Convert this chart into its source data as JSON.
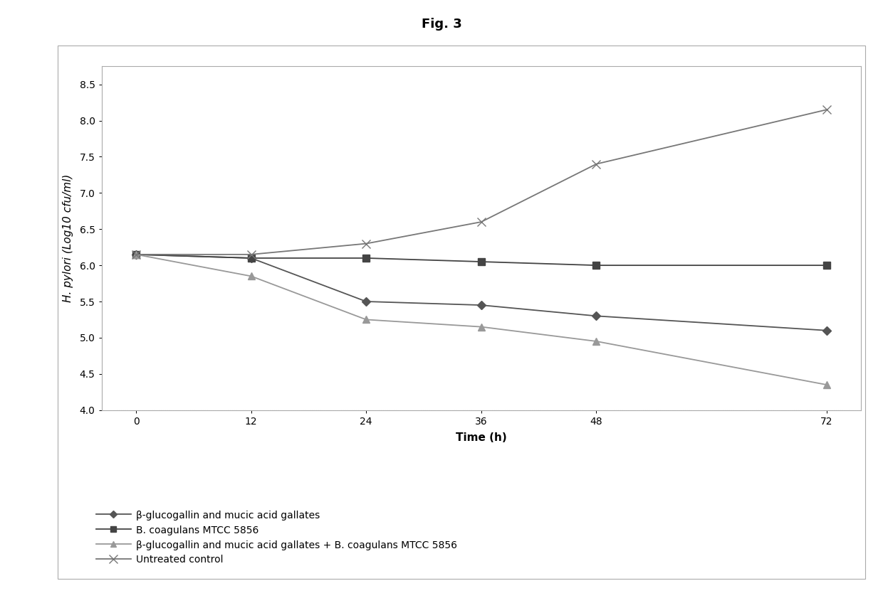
{
  "title": "Fig. 3",
  "xlabel": "Time (h)",
  "ylabel": "H. pylori (Log10 cfu/ml)",
  "x": [
    0,
    12,
    24,
    36,
    48,
    72
  ],
  "series": [
    {
      "label": "β-glucogallin and mucic acid gallates",
      "y": [
        6.15,
        6.1,
        5.5,
        5.45,
        5.3,
        5.1
      ],
      "color": "#555555",
      "marker": "D",
      "markersize": 6,
      "linewidth": 1.3,
      "linestyle": "-"
    },
    {
      "label": "B. coagulans MTCC 5856",
      "y": [
        6.15,
        6.1,
        6.1,
        6.05,
        6.0,
        6.0
      ],
      "color": "#444444",
      "marker": "s",
      "markersize": 7,
      "linewidth": 1.3,
      "linestyle": "-"
    },
    {
      "label": "β-glucogallin and mucic acid gallates + B. coagulans MTCC 5856",
      "y": [
        6.15,
        5.85,
        5.25,
        5.15,
        4.95,
        4.35
      ],
      "color": "#999999",
      "marker": "^",
      "markersize": 7,
      "linewidth": 1.3,
      "linestyle": "-"
    },
    {
      "label": "Untreated control",
      "y": [
        6.15,
        6.15,
        6.3,
        6.6,
        7.4,
        8.15
      ],
      "color": "#777777",
      "marker": "x",
      "markersize": 9,
      "linewidth": 1.3,
      "linestyle": "-"
    }
  ],
  "ylim": [
    4.0,
    8.75
  ],
  "yticks": [
    4.0,
    4.5,
    5.0,
    5.5,
    6.0,
    6.5,
    7.0,
    7.5,
    8.0,
    8.5
  ],
  "xticks": [
    0,
    12,
    24,
    36,
    48,
    72
  ],
  "hline_y": 4.0,
  "hline_color": "#bbbbbb",
  "hline_style": ":",
  "fig_facecolor": "#ffffff",
  "plot_facecolor": "#ffffff",
  "border_color": "#aaaaaa",
  "title_fontsize": 13,
  "axis_label_fontsize": 11,
  "tick_fontsize": 10,
  "legend_fontsize": 10
}
